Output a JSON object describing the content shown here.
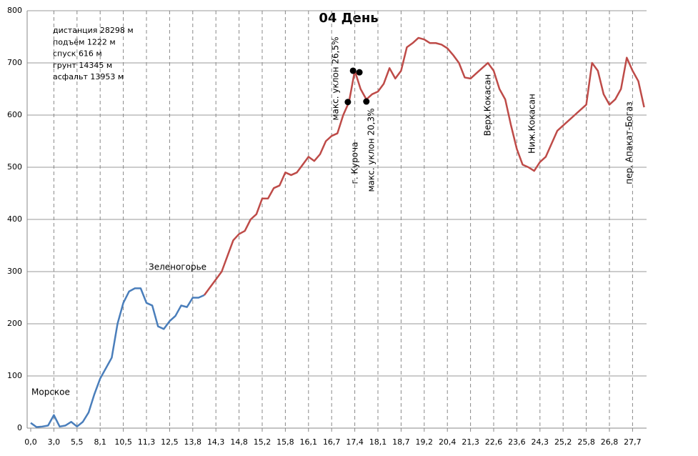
{
  "chart_data": {
    "type": "line",
    "title": "04 День",
    "stats": [
      "дистанция 28298 м",
      "подъём 1222 м",
      "спуск 616 м",
      "грунт 14345 м",
      "асфальт 13953 м"
    ],
    "annotations": [
      "Морское",
      "Зеленогорье",
      "макс. уклон 26,5%",
      "г. Курoча",
      "макс. уклон 20,3%",
      "Верх.Кокасан",
      "Ниж.Кокасан",
      "пер. Апакат-Богаз"
    ],
    "xlim": [
      0,
      106
    ],
    "xticks": [
      {
        "value": 0,
        "label": "0,0"
      },
      {
        "value": 4,
        "label": "3,0"
      },
      {
        "value": 8,
        "label": "5,5"
      },
      {
        "value": 12,
        "label": "8,1"
      },
      {
        "value": 16,
        "label": "10,5"
      },
      {
        "value": 20,
        "label": "11,3"
      },
      {
        "value": 24,
        "label": "12,5"
      },
      {
        "value": 28,
        "label": "13,8"
      },
      {
        "value": 32,
        "label": "14,3"
      },
      {
        "value": 36,
        "label": "14,8"
      },
      {
        "value": 40,
        "label": "15,2"
      },
      {
        "value": 44,
        "label": "15,8"
      },
      {
        "value": 48,
        "label": "16,1"
      },
      {
        "value": 52,
        "label": "16,7"
      },
      {
        "value": 56,
        "label": "17,4"
      },
      {
        "value": 60,
        "label": "18,1"
      },
      {
        "value": 64,
        "label": "18,7"
      },
      {
        "value": 68,
        "label": "19,2"
      },
      {
        "value": 72,
        "label": "20,4"
      },
      {
        "value": 76,
        "label": "21,3"
      },
      {
        "value": 80,
        "label": "22,6"
      },
      {
        "value": 84,
        "label": "23,6"
      },
      {
        "value": 88,
        "label": "24,3"
      },
      {
        "value": 92,
        "label": "25,2"
      },
      {
        "value": 96,
        "label": "25,8"
      },
      {
        "value": 100,
        "label": "26,8"
      },
      {
        "value": 104,
        "label": "27,7"
      }
    ],
    "ylim": [
      0,
      800
    ],
    "yticks": [
      0,
      100,
      200,
      300,
      400,
      500,
      600,
      700,
      800
    ],
    "grid": true,
    "series": [
      {
        "color": "#4a7ebb",
        "x": [
          0,
          1,
          2,
          3,
          4,
          5,
          6,
          7,
          8,
          9,
          10,
          11,
          12,
          13,
          14,
          15,
          16,
          17,
          18,
          19,
          20,
          21,
          22,
          23,
          24,
          25,
          26,
          27,
          28,
          29,
          30
        ],
        "values": [
          10,
          2,
          3,
          5,
          25,
          3,
          5,
          12,
          3,
          12,
          30,
          65,
          95,
          115,
          135,
          200,
          240,
          262,
          268,
          268,
          240,
          235,
          195,
          190,
          205,
          215,
          235,
          232,
          250,
          250,
          255
        ]
      },
      {
        "color": "#be4b48",
        "x": [
          30,
          31,
          32,
          33,
          34,
          35,
          36,
          37,
          38,
          39,
          40,
          41,
          42,
          43,
          44,
          45,
          46,
          47,
          48,
          49,
          50,
          51,
          52,
          53,
          54,
          55,
          56,
          57,
          58,
          59,
          60,
          61,
          62,
          63,
          64,
          65,
          66,
          67,
          68,
          69,
          70,
          71,
          72,
          73,
          74,
          75,
          76,
          77,
          78,
          79,
          80,
          81,
          82,
          83,
          84,
          85,
          86,
          87,
          88,
          89,
          90,
          91,
          92,
          93,
          94,
          95,
          96,
          97,
          98,
          99,
          100,
          101,
          102,
          103,
          104,
          105,
          106
        ],
        "values": [
          255,
          270,
          285,
          300,
          330,
          360,
          372,
          378,
          400,
          410,
          440,
          440,
          460,
          465,
          490,
          485,
          490,
          505,
          520,
          512,
          525,
          550,
          560,
          565,
          600,
          625,
          685,
          650,
          630,
          640,
          645,
          660,
          690,
          670,
          685,
          730,
          738,
          748,
          745,
          738,
          738,
          735,
          728,
          715,
          700,
          672,
          670,
          680,
          690,
          700,
          685,
          650,
          630,
          580,
          535,
          505,
          500,
          493,
          510,
          520,
          545,
          570,
          580,
          590,
          600,
          610,
          620,
          700,
          685,
          640,
          620,
          630,
          650,
          710,
          685,
          665,
          615
        ]
      }
    ],
    "points": {
      "color": "#000000",
      "x": [
        54.8,
        55.7,
        56.8,
        58
      ],
      "values": [
        625,
        685,
        682,
        626
      ]
    }
  }
}
